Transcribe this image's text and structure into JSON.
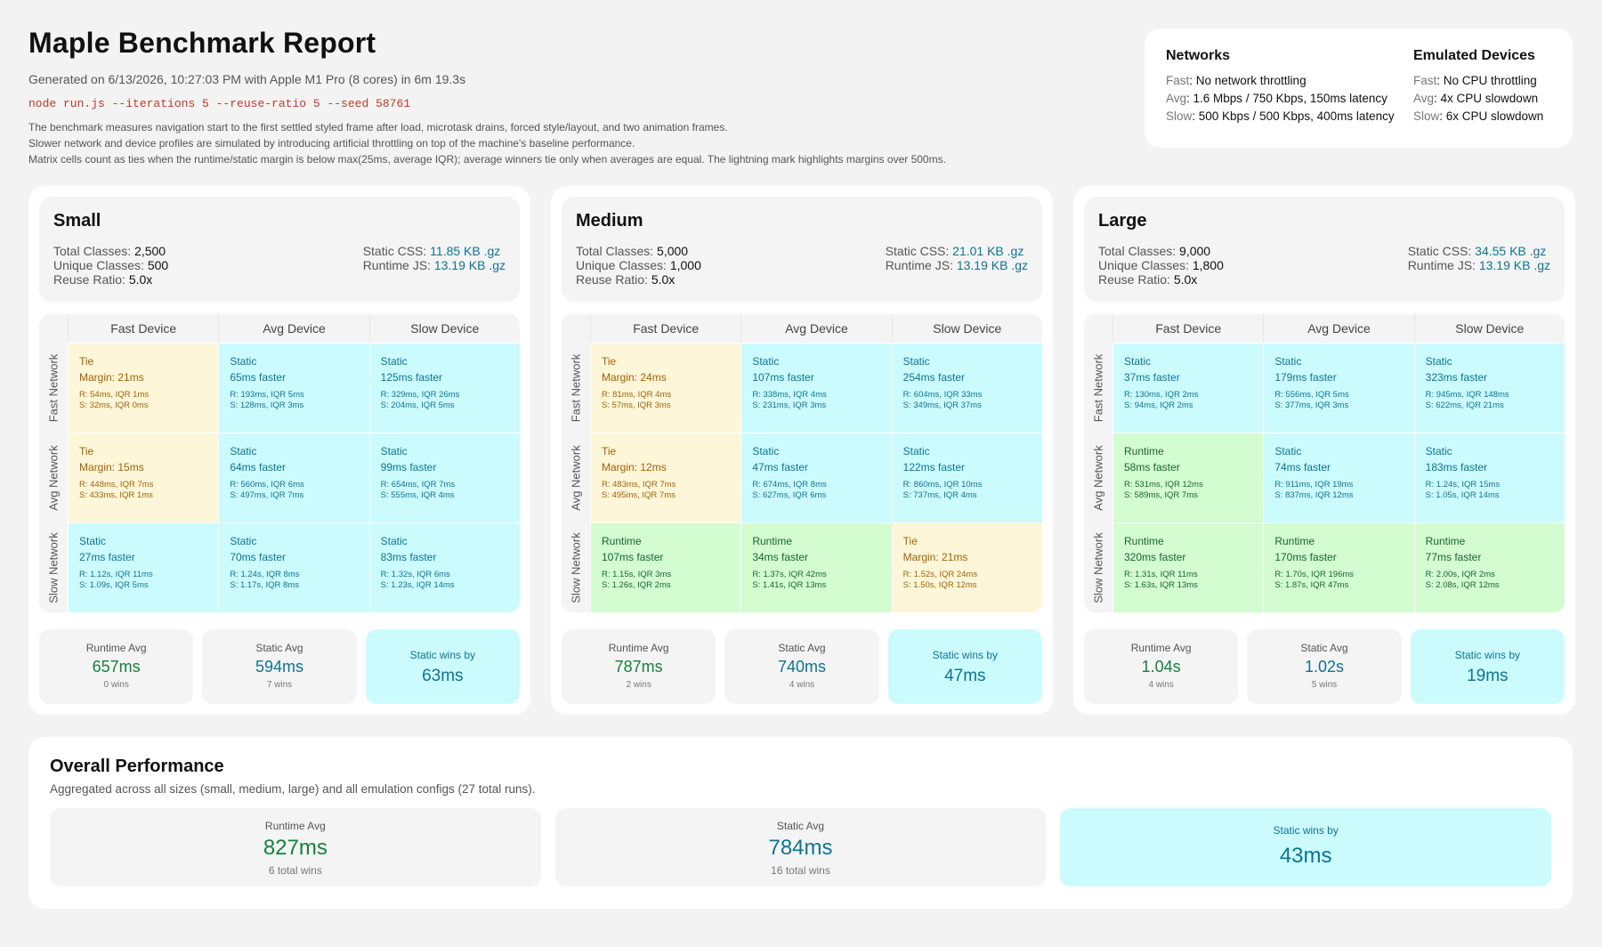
{
  "header": {
    "title": "Maple Benchmark Report",
    "meta": "Generated on 6/13/2026, 10:27:03 PM with Apple M1 Pro (8 cores) in 6m 19.3s",
    "command": "node run.js --iterations 5 --reuse-ratio 5 --seed 58761",
    "desc1": "The benchmark measures navigation start to the first settled styled frame after load, microtask drains, forced style/layout, and two animation frames.",
    "desc2": "Slower network and device profiles are simulated by introducing artificial throttling on top of the machine's baseline performance.",
    "desc3": "Matrix cells count as ties when the runtime/static margin is below max(25ms, average IQR); average winners tie only when averages are equal. The lightning mark highlights margins over 500ms."
  },
  "legend": {
    "networks": {
      "title": "Networks",
      "rows": [
        {
          "k": "Fast",
          "v": ": No network throttling"
        },
        {
          "k": "Avg",
          "v": ": 1.6 Mbps / 750 Kbps, 150ms latency"
        },
        {
          "k": "Slow",
          "v": ": 500 Kbps / 500 Kbps, 400ms latency"
        }
      ]
    },
    "devices": {
      "title": "Emulated Devices",
      "rows": [
        {
          "k": "Fast",
          "v": ": No CPU throttling"
        },
        {
          "k": "Avg",
          "v": ": 4x CPU slowdown"
        },
        {
          "k": "Slow",
          "v": ": 6x CPU slowdown"
        }
      ]
    }
  },
  "labels": {
    "total_classes": "Total Classes: ",
    "unique_classes": "Unique Classes: ",
    "reuse_ratio": "Reuse Ratio: ",
    "static_css": "Static CSS: ",
    "runtime_js": "Runtime JS: ",
    "col_fast": "Fast Device",
    "col_avg": "Avg Device",
    "col_slow": "Slow Device",
    "row_fast": "Fast Network",
    "row_avg": "Avg Network",
    "row_slow": "Slow Network",
    "runtime_avg": "Runtime Avg",
    "static_avg": "Static Avg",
    "static_wins_by": "Static wins by"
  },
  "panels": [
    {
      "title": "Small",
      "total_classes": "2,500",
      "unique_classes": "500",
      "reuse_ratio": "5.0x",
      "static_css": "11.85 KB .gz",
      "runtime_js": "13.19 KB .gz",
      "rows": [
        [
          {
            "kind": "tie",
            "winner": "Tie",
            "margin": "Margin: 21ms",
            "r": "R: 54ms, IQR 1ms",
            "s": "S: 32ms, IQR 0ms"
          },
          {
            "kind": "static",
            "winner": "Static",
            "margin": "65ms faster",
            "r": "R: 193ms, IQR 5ms",
            "s": "S: 128ms, IQR 3ms"
          },
          {
            "kind": "static",
            "winner": "Static",
            "margin": "125ms faster",
            "r": "R: 329ms, IQR 26ms",
            "s": "S: 204ms, IQR 5ms"
          }
        ],
        [
          {
            "kind": "tie",
            "winner": "Tie",
            "margin": "Margin: 15ms",
            "r": "R: 448ms, IQR 7ms",
            "s": "S: 433ms, IQR 1ms"
          },
          {
            "kind": "static",
            "winner": "Static",
            "margin": "64ms faster",
            "r": "R: 560ms, IQR 6ms",
            "s": "S: 497ms, IQR 7ms"
          },
          {
            "kind": "static",
            "winner": "Static",
            "margin": "99ms faster",
            "r": "R: 654ms, IQR 7ms",
            "s": "S: 555ms, IQR 4ms"
          }
        ],
        [
          {
            "kind": "static",
            "winner": "Static",
            "margin": "27ms faster",
            "r": "R: 1.12s, IQR 11ms",
            "s": "S: 1.09s, IQR 5ms"
          },
          {
            "kind": "static",
            "winner": "Static",
            "margin": "70ms faster",
            "r": "R: 1.24s, IQR 8ms",
            "s": "S: 1.17s, IQR 8ms"
          },
          {
            "kind": "static",
            "winner": "Static",
            "margin": "83ms faster",
            "r": "R: 1.32s, IQR 6ms",
            "s": "S: 1.23s, IQR 14ms"
          }
        ]
      ],
      "runtime_avg": "657ms",
      "runtime_wins": "0 wins",
      "static_avg": "594ms",
      "static_wins": "7 wins",
      "wins_by": "63ms"
    },
    {
      "title": "Medium",
      "total_classes": "5,000",
      "unique_classes": "1,000",
      "reuse_ratio": "5.0x",
      "static_css": "21.01 KB .gz",
      "runtime_js": "13.19 KB .gz",
      "rows": [
        [
          {
            "kind": "tie",
            "winner": "Tie",
            "margin": "Margin: 24ms",
            "r": "R: 81ms, IQR 4ms",
            "s": "S: 57ms, IQR 3ms"
          },
          {
            "kind": "static",
            "winner": "Static",
            "margin": "107ms faster",
            "r": "R: 338ms, IQR 4ms",
            "s": "S: 231ms, IQR 3ms"
          },
          {
            "kind": "static",
            "winner": "Static",
            "margin": "254ms faster",
            "r": "R: 604ms, IQR 33ms",
            "s": "S: 349ms, IQR 37ms"
          }
        ],
        [
          {
            "kind": "tie",
            "winner": "Tie",
            "margin": "Margin: 12ms",
            "r": "R: 483ms, IQR 7ms",
            "s": "S: 495ms, IQR 7ms"
          },
          {
            "kind": "static",
            "winner": "Static",
            "margin": "47ms faster",
            "r": "R: 674ms, IQR 8ms",
            "s": "S: 627ms, IQR 6ms"
          },
          {
            "kind": "static",
            "winner": "Static",
            "margin": "122ms faster",
            "r": "R: 860ms, IQR 10ms",
            "s": "S: 737ms, IQR 4ms"
          }
        ],
        [
          {
            "kind": "runtime",
            "winner": "Runtime",
            "margin": "107ms faster",
            "r": "R: 1.15s, IQR 3ms",
            "s": "S: 1.26s, IQR 2ms"
          },
          {
            "kind": "runtime",
            "winner": "Runtime",
            "margin": "34ms faster",
            "r": "R: 1.37s, IQR 42ms",
            "s": "S: 1.41s, IQR 13ms"
          },
          {
            "kind": "tie",
            "winner": "Tie",
            "margin": "Margin: 21ms",
            "r": "R: 1.52s, IQR 24ms",
            "s": "S: 1.50s, IQR 12ms"
          }
        ]
      ],
      "runtime_avg": "787ms",
      "runtime_wins": "2 wins",
      "static_avg": "740ms",
      "static_wins": "4 wins",
      "wins_by": "47ms"
    },
    {
      "title": "Large",
      "total_classes": "9,000",
      "unique_classes": "1,800",
      "reuse_ratio": "5.0x",
      "static_css": "34.55 KB .gz",
      "runtime_js": "13.19 KB .gz",
      "rows": [
        [
          {
            "kind": "static",
            "winner": "Static",
            "margin": "37ms faster",
            "r": "R: 130ms, IQR 2ms",
            "s": "S: 94ms, IQR 2ms"
          },
          {
            "kind": "static",
            "winner": "Static",
            "margin": "179ms faster",
            "r": "R: 556ms, IQR 5ms",
            "s": "S: 377ms, IQR 3ms"
          },
          {
            "kind": "static",
            "winner": "Static",
            "margin": "323ms faster",
            "r": "R: 945ms, IQR 148ms",
            "s": "S: 622ms, IQR 21ms"
          }
        ],
        [
          {
            "kind": "runtime",
            "winner": "Runtime",
            "margin": "58ms faster",
            "r": "R: 531ms, IQR 12ms",
            "s": "S: 589ms, IQR 7ms"
          },
          {
            "kind": "static",
            "winner": "Static",
            "margin": "74ms faster",
            "r": "R: 911ms, IQR 19ms",
            "s": "S: 837ms, IQR 12ms"
          },
          {
            "kind": "static",
            "winner": "Static",
            "margin": "183ms faster",
            "r": "R: 1.24s, IQR 15ms",
            "s": "S: 1.05s, IQR 14ms"
          }
        ],
        [
          {
            "kind": "runtime",
            "winner": "Runtime",
            "margin": "320ms faster",
            "r": "R: 1.31s, IQR 11ms",
            "s": "S: 1.63s, IQR 13ms"
          },
          {
            "kind": "runtime",
            "winner": "Runtime",
            "margin": "170ms faster",
            "r": "R: 1.70s, IQR 196ms",
            "s": "S: 1.87s, IQR 47ms"
          },
          {
            "kind": "runtime",
            "winner": "Runtime",
            "margin": "77ms faster",
            "r": "R: 2.00s, IQR 2ms",
            "s": "S: 2.08s, IQR 12ms"
          }
        ]
      ],
      "runtime_avg": "1.04s",
      "runtime_wins": "4 wins",
      "static_avg": "1.02s",
      "static_wins": "5 wins",
      "wins_by": "19ms"
    }
  ],
  "overall": {
    "title": "Overall Performance",
    "subtitle": "Aggregated across all sizes (small, medium, large) and all emulation configs (27 total runs).",
    "runtime_label": "Runtime Avg",
    "runtime_avg": "827ms",
    "runtime_wins": "6 total wins",
    "static_label": "Static Avg",
    "static_avg": "784ms",
    "static_wins": "16 total wins",
    "wins_label": "Static wins by",
    "wins_by": "43ms"
  }
}
